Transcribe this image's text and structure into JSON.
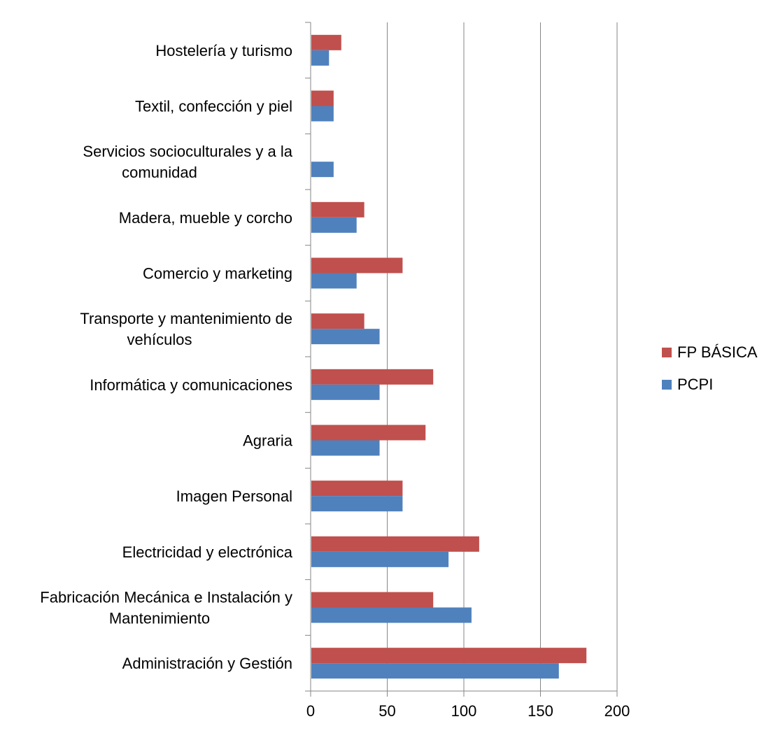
{
  "chart_data": {
    "type": "bar",
    "orientation": "horizontal",
    "categories": [
      "Administración y Gestión",
      "Fabricación Mecánica e Instalación y Mantenimiento",
      "Electricidad y electrónica",
      "Imagen Personal",
      "Agraria",
      "Informática y comunicaciones",
      "Transporte y mantenimiento de vehículos",
      "Comercio y marketing",
      "Madera, mueble y corcho",
      "Servicios socioculturales y a la comunidad",
      "Textil, confección y piel",
      "Hostelería y turismo"
    ],
    "category_lines": [
      [
        "Administración y Gestión"
      ],
      [
        "Fabricación Mecánica e Instalación y",
        "Mantenimiento"
      ],
      [
        "Electricidad y electrónica"
      ],
      [
        "Imagen Personal"
      ],
      [
        "Agraria"
      ],
      [
        "Informática y comunicaciones"
      ],
      [
        "Transporte y mantenimiento de",
        "vehículos"
      ],
      [
        "Comercio y marketing"
      ],
      [
        "Madera, mueble y corcho"
      ],
      [
        "Servicios socioculturales y a la",
        "comunidad"
      ],
      [
        "Textil, confección y piel"
      ],
      [
        "Hostelería y turismo"
      ]
    ],
    "series": [
      {
        "name": "FP BÁSICA",
        "color": "#c0504d",
        "values": [
          180,
          80,
          110,
          60,
          75,
          80,
          35,
          60,
          35,
          0,
          15,
          20
        ]
      },
      {
        "name": "PCPI",
        "color": "#4f81bd",
        "values": [
          162,
          105,
          90,
          60,
          45,
          45,
          45,
          30,
          30,
          15,
          15,
          12
        ]
      }
    ],
    "xlim": [
      0,
      200
    ],
    "xticks": [
      0,
      50,
      100,
      150,
      200
    ],
    "xtick_labels": [
      "0",
      "50",
      "100",
      "150",
      "200"
    ],
    "grid": "vertical",
    "legend": "right",
    "title": "",
    "xlabel": "",
    "ylabel": ""
  }
}
